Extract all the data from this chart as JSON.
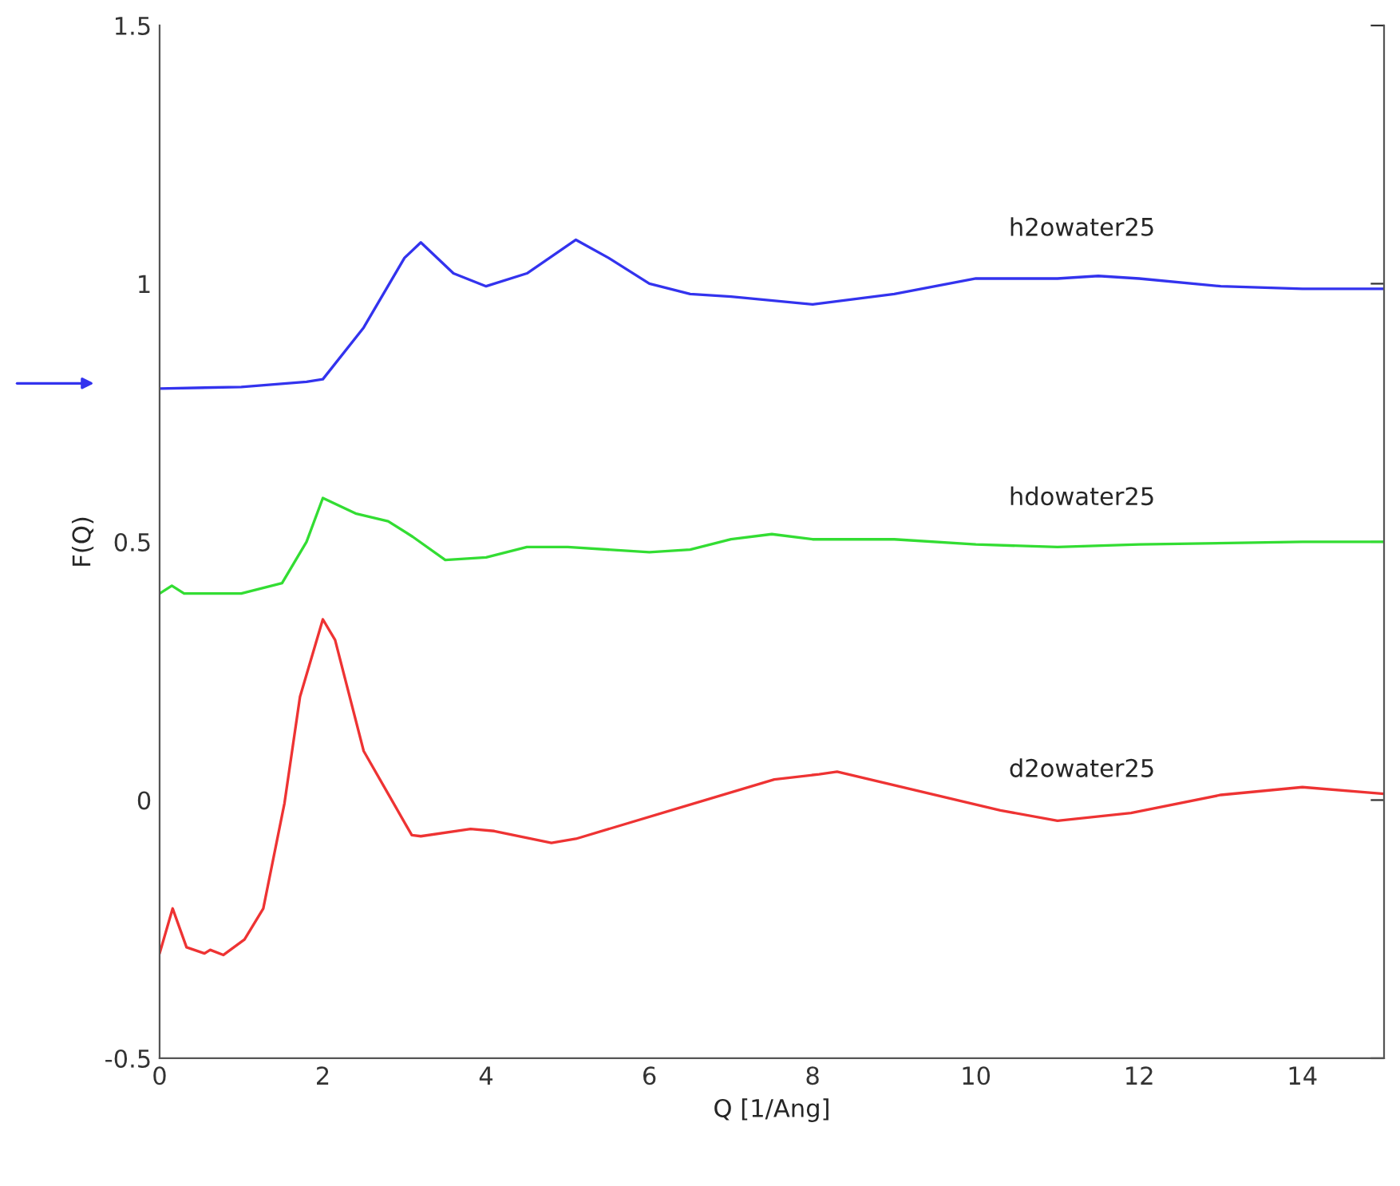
{
  "chart_data": {
    "type": "line",
    "xlabel": "Q [1/Ang]",
    "ylabel": "F(Q)",
    "xlim": [
      0,
      15
    ],
    "xticks": [
      0,
      2,
      4,
      6,
      8,
      10,
      12,
      14
    ],
    "ylim": [
      -0.5,
      1.5
    ],
    "yticks": [
      -0.5,
      0,
      0.5,
      1,
      1.5
    ],
    "grid": false,
    "legend": false,
    "series": [
      {
        "name": "h2owater25",
        "color": "#3333ee",
        "x": [
          0,
          1,
          1.8,
          2,
          2.5,
          3,
          3.2,
          3.6,
          4,
          4.5,
          5.1,
          5.5,
          6,
          6.5,
          7,
          8,
          9,
          10,
          11,
          11.5,
          12,
          13,
          14,
          15
        ],
        "values": [
          0.797,
          0.8,
          0.81,
          0.815,
          0.915,
          1.05,
          1.08,
          1.02,
          0.995,
          1.02,
          1.085,
          1.05,
          1.0,
          0.98,
          0.975,
          0.96,
          0.98,
          1.01,
          1.01,
          1.015,
          1.01,
          0.995,
          0.99,
          0.99
        ]
      },
      {
        "name": "hdowater25",
        "color": "#33dd33",
        "x": [
          0,
          0.15,
          0.3,
          1,
          1.5,
          1.8,
          2,
          2.4,
          2.8,
          3.1,
          3.5,
          4,
          4.5,
          5,
          6,
          6.5,
          7,
          7.5,
          8,
          9,
          10,
          11,
          12,
          14,
          15
        ],
        "values": [
          0.4,
          0.415,
          0.4,
          0.4,
          0.42,
          0.5,
          0.585,
          0.555,
          0.54,
          0.51,
          0.465,
          0.47,
          0.49,
          0.49,
          0.48,
          0.485,
          0.505,
          0.515,
          0.505,
          0.505,
          0.495,
          0.49,
          0.495,
          0.5,
          0.5
        ]
      },
      {
        "name": "d2owater25",
        "color": "#ee3333",
        "x": [
          0,
          0.16,
          0.33,
          0.55,
          0.62,
          0.78,
          1.04,
          1.27,
          1.53,
          1.72,
          2.0,
          2.15,
          2.5,
          2.8,
          3.09,
          3.2,
          3.81,
          4.1,
          4.8,
          5.1,
          7.53,
          8.08,
          8.3,
          10.3,
          11,
          11.9,
          13,
          14,
          15
        ],
        "values": [
          -0.297,
          -0.21,
          -0.285,
          -0.297,
          -0.29,
          -0.3,
          -0.27,
          -0.21,
          -0.006,
          0.2,
          0.35,
          0.31,
          0.095,
          0.012,
          -0.068,
          -0.07,
          -0.056,
          -0.06,
          -0.083,
          -0.075,
          0.04,
          0.05,
          0.055,
          -0.02,
          -0.04,
          -0.025,
          0.01,
          0.025,
          0.012
        ]
      }
    ]
  }
}
